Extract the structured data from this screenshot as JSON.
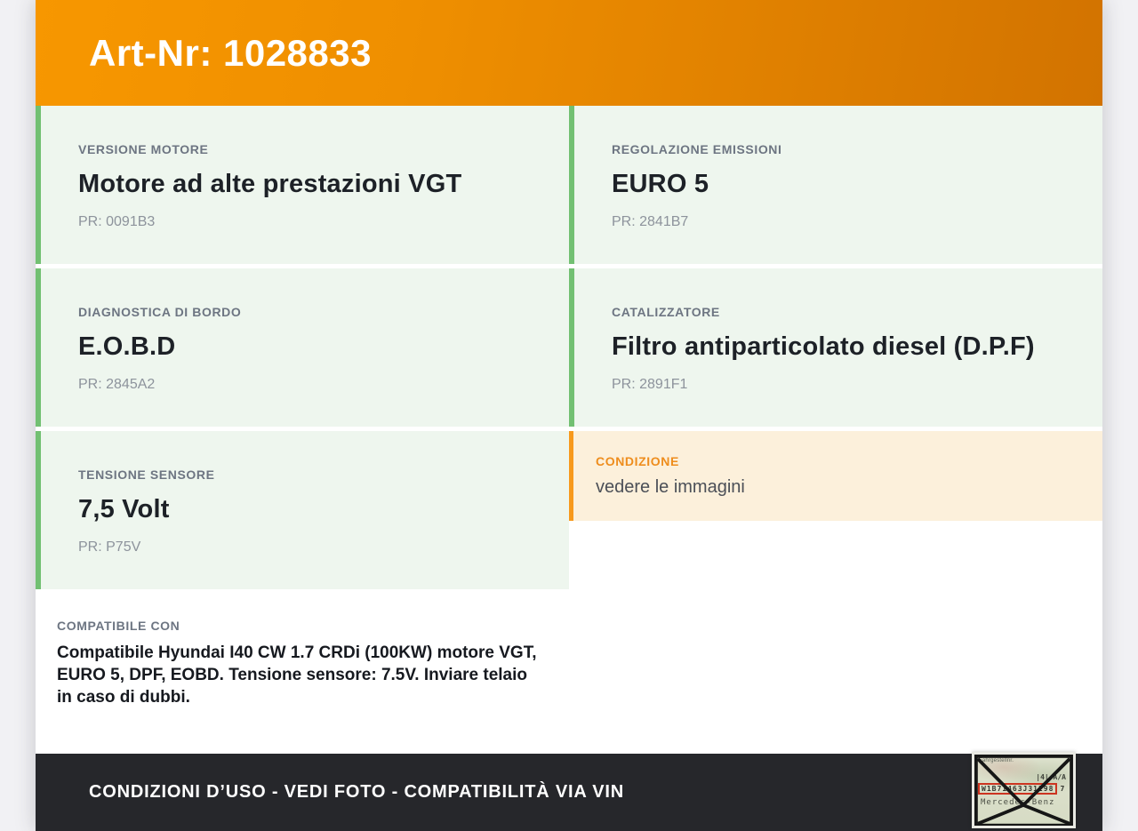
{
  "header": {
    "title": "Art-Nr: 1028833"
  },
  "cards": {
    "left": [
      {
        "label": "VERSIONE MOTORE",
        "value": "Motore ad alte prestazioni VGT",
        "pr": "PR: 0091B3",
        "variant": "green",
        "name": "card-versione-motore"
      },
      {
        "label": "DIAGNOSTICA DI BORDO",
        "value": "E.O.B.D",
        "pr": "PR: 2845A2",
        "variant": "green",
        "name": "card-diagnostica-di-bordo"
      },
      {
        "label": "TENSIONE SENSORE",
        "value": "7,5 Volt",
        "pr": "PR: P75V",
        "variant": "green",
        "name": "card-tensione-sensore"
      },
      {
        "label": "COMPATIBILE CON",
        "value": "Compatibile Hyundai I40 CW 1.7 CRDi (100KW) motore VGT, EURO 5, DPF, EOBD. Tensione sensore: 7.5V. Inviare telaio in caso di dubbi.",
        "pr": null,
        "variant": "plain",
        "name": "card-compatibile-con"
      }
    ],
    "right": [
      {
        "label": "REGOLAZIONE EMISSIONI",
        "value": "EURO 5",
        "pr": "PR: 2841B7",
        "variant": "green",
        "name": "card-regolazione-emissioni"
      },
      {
        "label": "CATALIZZATORE",
        "value": "Filtro antiparticolato diesel (D.P.F)",
        "pr": "PR: 2891F1",
        "variant": "green",
        "name": "card-catalizzatore"
      },
      {
        "label": "CONDIZIONE",
        "value": "vedere le immagini",
        "pr": null,
        "variant": "orange",
        "name": "card-condizione"
      }
    ]
  },
  "footer": {
    "notice": "CONDIZIONI D’USO - VEDI FOTO - COMPATIBILITÀ VIA VIN"
  },
  "thumbnail": {
    "doc_label": "Fahrgestellnr.",
    "doc_corner": "|4| A/A",
    "vin": "W1B71463J31298",
    "vin_suffix": "7",
    "brand": "Mercedes-Benz"
  },
  "colors": {
    "header_gradient_start": "#f79700",
    "header_gradient_end": "#d27300",
    "green_accent": "#72c072",
    "green_card_bg": "#eef6ee",
    "orange_accent": "#f7991c",
    "orange_card_bg": "#fcf0db",
    "orange_label": "#ee8d1d",
    "label_gray": "#6d7582",
    "title_dark": "#1d2127",
    "pr_gray": "#8d939c",
    "footer_bg": "#26272b",
    "page_bg": "#f1f1f4",
    "vin_box_red": "#cc3420"
  }
}
